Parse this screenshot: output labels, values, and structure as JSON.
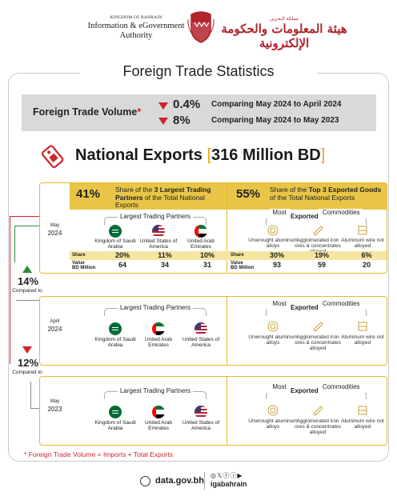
{
  "header": {
    "kingdom": "KINGDOM OF BAHRAIN",
    "org_en_line1": "Information & eGovernment",
    "org_en_line2": "Authority",
    "org_ar": "هيئة المعلومات والحكومة الإلكترونية",
    "org_ar_small": "مملكة البحرين"
  },
  "title": "Foreign Trade Statistics",
  "volume": {
    "label": "Foreign Trade Volume",
    "star": "*",
    "rows": [
      {
        "pct": "0.4%",
        "text": "Comparing May 2024 to April 2024"
      },
      {
        "pct": "8%",
        "text": "Comparing May 2024 to May 2023"
      }
    ]
  },
  "national_exports": {
    "label": "National Exports",
    "value": "316 Million BD"
  },
  "may2024": {
    "month": "May",
    "year": "2024",
    "partners_share": "41%",
    "partners_desc_a": "Share of the ",
    "partners_desc_b": "3 Largest Trading Partners",
    "partners_desc_c": " of the Total National Exports",
    "goods_share": "55%",
    "goods_desc_a": "Share of the ",
    "goods_desc_b": "Top 3 Exported Goods",
    "goods_desc_c": " of the Total National Exports",
    "partners_title": "Largest Trading Partners",
    "commodities_title_a": "Most ",
    "commodities_title_b": "Exported",
    "commodities_title_c": " Commodities",
    "partners": [
      "Kingdom of Saudi Arabia",
      "United States of America",
      "United Arab Emirates"
    ],
    "commodities": [
      "Unwrought aluminum alloys",
      "Agglomerated iron ores & concentrates alloyed",
      "Aluminum wire not alloyed"
    ],
    "share_label": "Share",
    "value_label_1": "Value",
    "value_label_2": "BD Million",
    "partner_share": [
      "20%",
      "11%",
      "10%"
    ],
    "partner_value": [
      "64",
      "34",
      "31"
    ],
    "commodity_share": [
      "30%",
      "19%",
      "6%"
    ],
    "commodity_value": [
      "93",
      "59",
      "20"
    ]
  },
  "cmp1": {
    "pct": "14%",
    "label": "Compared to",
    "dir": "up",
    "color": "#2e8b3a"
  },
  "cmp2": {
    "pct": "12%",
    "label": "Compared to",
    "dir": "down",
    "color": "#d2232a"
  },
  "apr2024": {
    "month": "April",
    "year": "2024",
    "partners_title": "Largest Trading Partners",
    "commodities_title_a": "Most ",
    "commodities_title_b": "Exported",
    "commodities_title_c": " Commodities",
    "partners": [
      "Kingdom of Saudi Arabia",
      "United Arab Emirates",
      "United States of America"
    ],
    "commodities": [
      "Unwrought aluminum alloys",
      "Agglomerated iron ores & concentrates alloyed",
      "Aluminum wire not alloyed"
    ]
  },
  "may2023": {
    "month": "May",
    "year": "2023",
    "partners_title": "Largest Trading Partners",
    "commodities_title_a": "Most ",
    "commodities_title_b": "Exported",
    "commodities_title_c": " Commodities",
    "partners": [
      "Kingdom of Saudi Arabia",
      "United Arab Emirates",
      "United States of America"
    ],
    "commodities": [
      "Unwrought aluminum alloys",
      "Agglomerated iron ores & concentrates alloyed",
      "Aluminum wire not alloyed"
    ]
  },
  "footnote": "*  Foreign Trade Volume = Imports + Total Exports",
  "footer": {
    "url": "data.gov.bh",
    "social_icons": "◎𝕏ⓕⓘ▶",
    "handle": "igabahrain"
  },
  "colors": {
    "accent": "#e6ba2b",
    "red": "#d2232a",
    "green": "#2e8b3a",
    "header_fill": "#e8c547",
    "table_shade": "#f4e5a1",
    "gray_box": "#d9d9d9"
  },
  "icons": [
    "emblem-icon",
    "tag-icon",
    "saudi-flag-icon",
    "usa-flag-icon",
    "uae-flag-icon",
    "aluminum-coil-icon",
    "iron-ore-icon",
    "wire-icon",
    "globe-icon"
  ]
}
